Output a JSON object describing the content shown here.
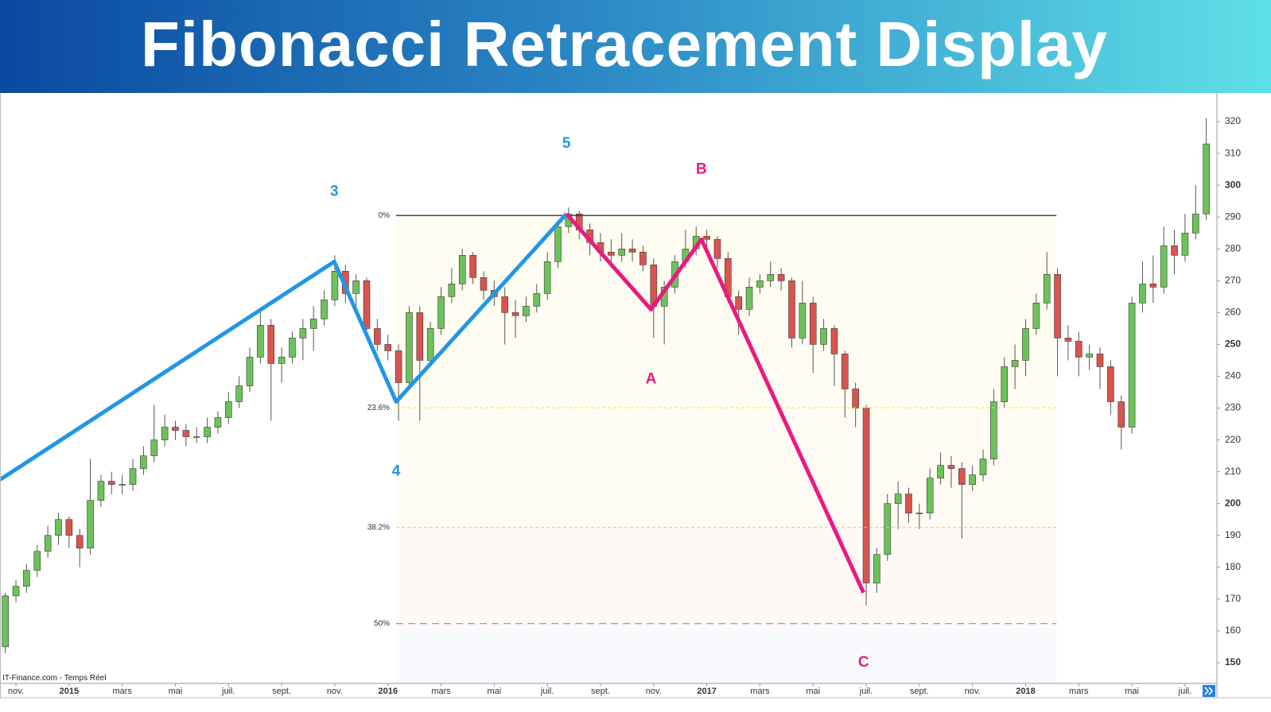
{
  "header": {
    "title": "Fibonacci Retracement Display"
  },
  "chart_data": {
    "type": "candlestick",
    "source": "IT-Finance.com - Temps Réel",
    "up_color": "#6cc25a",
    "down_color": "#d9534f",
    "xlim": [
      -0.6,
      45.2
    ],
    "ylim": [
      143.5,
      329
    ],
    "yticks": [
      150,
      160,
      170,
      180,
      190,
      200,
      210,
      220,
      230,
      240,
      250,
      260,
      270,
      280,
      290,
      300,
      310,
      320
    ],
    "xticks": [
      {
        "value": 0,
        "label": "nov."
      },
      {
        "value": 2,
        "label": "2015"
      },
      {
        "value": 4,
        "label": "mars"
      },
      {
        "value": 6,
        "label": "mai"
      },
      {
        "value": 8,
        "label": "juil."
      },
      {
        "value": 10,
        "label": "sept."
      },
      {
        "value": 12,
        "label": "nov."
      },
      {
        "value": 14,
        "label": "2016"
      },
      {
        "value": 16,
        "label": "mars"
      },
      {
        "value": 18,
        "label": "mai"
      },
      {
        "value": 20,
        "label": "juil."
      },
      {
        "value": 22,
        "label": "sept."
      },
      {
        "value": 24,
        "label": "nov."
      },
      {
        "value": 26,
        "label": "2017"
      },
      {
        "value": 28,
        "label": "mars"
      },
      {
        "value": 30,
        "label": "mai"
      },
      {
        "value": 32,
        "label": "juil."
      },
      {
        "value": 34,
        "label": "sept."
      },
      {
        "value": 36,
        "label": "nov."
      },
      {
        "value": 38,
        "label": "2018"
      },
      {
        "value": 40,
        "label": "mars"
      },
      {
        "value": 42,
        "label": "mai"
      },
      {
        "value": 44,
        "label": "juil."
      }
    ],
    "x": [
      -0.4,
      0,
      0.4,
      0.8,
      1.2,
      1.6,
      2,
      2.4,
      2.8,
      3.2,
      3.6,
      4,
      4.4,
      4.8,
      5.2,
      5.6,
      6,
      6.4,
      6.8,
      7.2,
      7.6,
      8,
      8.4,
      8.8,
      9.2,
      9.6,
      10,
      10.4,
      10.8,
      11.2,
      11.6,
      12,
      12.4,
      12.8,
      13.2,
      13.6,
      14,
      14.4,
      14.8,
      15.2,
      15.6,
      16,
      16.4,
      16.8,
      17.2,
      17.6,
      18,
      18.4,
      18.8,
      19.2,
      19.6,
      20,
      20.4,
      20.8,
      21.2,
      21.6,
      22,
      22.4,
      22.8,
      23.2,
      23.6,
      24,
      24.4,
      24.8,
      25.2,
      25.6,
      26,
      26.4,
      26.8,
      27.2,
      27.6,
      28,
      28.4,
      28.8,
      29.2,
      29.6,
      30,
      30.4,
      30.8,
      31.2,
      31.6,
      32,
      32.4,
      32.8,
      33.2,
      33.6,
      34,
      34.4,
      34.8,
      35.2,
      35.6,
      36,
      36.4,
      36.8,
      37.2,
      37.6,
      38,
      38.4,
      38.8,
      39.2,
      39.6,
      40,
      40.4,
      40.8,
      41.2,
      41.6,
      42,
      42.4,
      42.8,
      43.2,
      43.6,
      44,
      44.4,
      44.8
    ],
    "candles": [
      [
        155,
        172,
        153,
        171
      ],
      [
        171,
        176,
        169,
        174
      ],
      [
        174,
        181,
        172,
        179
      ],
      [
        179,
        187,
        177,
        185
      ],
      [
        185,
        193,
        183,
        190
      ],
      [
        190,
        197,
        187,
        195
      ],
      [
        195,
        196,
        186,
        190
      ],
      [
        190,
        192,
        180,
        186
      ],
      [
        186,
        214,
        184,
        201
      ],
      [
        201,
        209,
        199,
        207
      ],
      [
        207,
        210,
        203,
        206
      ],
      [
        206,
        209,
        203,
        206
      ],
      [
        206,
        214,
        204,
        211
      ],
      [
        211,
        218,
        209,
        215
      ],
      [
        215,
        231,
        213,
        220
      ],
      [
        220,
        228,
        218,
        224
      ],
      [
        224,
        226,
        220,
        223
      ],
      [
        223,
        225,
        218,
        221
      ],
      [
        221,
        224,
        219,
        221
      ],
      [
        221,
        227,
        219,
        224
      ],
      [
        224,
        229,
        222,
        227
      ],
      [
        227,
        235,
        225,
        232
      ],
      [
        232,
        240,
        230,
        237
      ],
      [
        237,
        249,
        235,
        246
      ],
      [
        246,
        260,
        244,
        256
      ],
      [
        256,
        258,
        226,
        244
      ],
      [
        244,
        249,
        238,
        246
      ],
      [
        246,
        254,
        244,
        252
      ],
      [
        252,
        258,
        245,
        255
      ],
      [
        255,
        262,
        248,
        258
      ],
      [
        258,
        267,
        256,
        264
      ],
      [
        264,
        278,
        262,
        273
      ],
      [
        273,
        275,
        263,
        266
      ],
      [
        266,
        272,
        262,
        270
      ],
      [
        270,
        271,
        252,
        255
      ],
      [
        255,
        258,
        248,
        250
      ],
      [
        250,
        253,
        245,
        248
      ],
      [
        248,
        250,
        226,
        238
      ],
      [
        238,
        262,
        236,
        260
      ],
      [
        260,
        262,
        226,
        245
      ],
      [
        245,
        257,
        243,
        255
      ],
      [
        255,
        268,
        253,
        265
      ],
      [
        265,
        274,
        263,
        269
      ],
      [
        269,
        280,
        267,
        278
      ],
      [
        278,
        279,
        269,
        271
      ],
      [
        271,
        273,
        264,
        267
      ],
      [
        267,
        270,
        262,
        265
      ],
      [
        265,
        268,
        250,
        260
      ],
      [
        260,
        264,
        252,
        259
      ],
      [
        259,
        265,
        257,
        262
      ],
      [
        262,
        269,
        260,
        266
      ],
      [
        266,
        279,
        264,
        276
      ],
      [
        276,
        289,
        274,
        287
      ],
      [
        287,
        293,
        285,
        291
      ],
      [
        291,
        292,
        283,
        286
      ],
      [
        286,
        288,
        278,
        282
      ],
      [
        282,
        285,
        276,
        279
      ],
      [
        279,
        283,
        274,
        278
      ],
      [
        278,
        285,
        276,
        280
      ],
      [
        280,
        283,
        276,
        279
      ],
      [
        279,
        281,
        273,
        275
      ],
      [
        275,
        277,
        252,
        262
      ],
      [
        262,
        270,
        250,
        268
      ],
      [
        268,
        278,
        266,
        276
      ],
      [
        276,
        286,
        274,
        280
      ],
      [
        280,
        287,
        278,
        284
      ],
      [
        284,
        286,
        280,
        283
      ],
      [
        283,
        284,
        274,
        277
      ],
      [
        277,
        279,
        263,
        265
      ],
      [
        265,
        267,
        253,
        261
      ],
      [
        261,
        271,
        259,
        268
      ],
      [
        268,
        272,
        266,
        270
      ],
      [
        270,
        276,
        268,
        272
      ],
      [
        272,
        274,
        267,
        270
      ],
      [
        270,
        271,
        249,
        252
      ],
      [
        252,
        270,
        250,
        263
      ],
      [
        263,
        265,
        241,
        250
      ],
      [
        250,
        258,
        248,
        255
      ],
      [
        255,
        256,
        237,
        247
      ],
      [
        247,
        248,
        227,
        236
      ],
      [
        236,
        238,
        224,
        230
      ],
      [
        230,
        231,
        168,
        175
      ],
      [
        175,
        186,
        172,
        184
      ],
      [
        184,
        203,
        182,
        200
      ],
      [
        200,
        207,
        192,
        203
      ],
      [
        203,
        205,
        194,
        197
      ],
      [
        197,
        200,
        192,
        197
      ],
      [
        197,
        211,
        195,
        208
      ],
      [
        208,
        216,
        206,
        212
      ],
      [
        212,
        215,
        205,
        211
      ],
      [
        211,
        213,
        189,
        206
      ],
      [
        206,
        212,
        204,
        209
      ],
      [
        209,
        217,
        207,
        214
      ],
      [
        214,
        236,
        212,
        232
      ],
      [
        232,
        246,
        230,
        243
      ],
      [
        243,
        250,
        236,
        245
      ],
      [
        245,
        258,
        240,
        255
      ],
      [
        255,
        266,
        253,
        263
      ],
      [
        263,
        279,
        261,
        272
      ],
      [
        272,
        274,
        240,
        252
      ],
      [
        252,
        256,
        245,
        251
      ],
      [
        251,
        254,
        240,
        246
      ],
      [
        246,
        250,
        242,
        247
      ],
      [
        247,
        249,
        236,
        243
      ],
      [
        243,
        245,
        228,
        232
      ],
      [
        232,
        234,
        217,
        224
      ],
      [
        224,
        265,
        222,
        263
      ],
      [
        263,
        276,
        260,
        269
      ],
      [
        269,
        278,
        263,
        268
      ],
      [
        268,
        287,
        266,
        281
      ],
      [
        281,
        286,
        272,
        278
      ],
      [
        278,
        291,
        276,
        285
      ],
      [
        285,
        300,
        283,
        291
      ],
      [
        291,
        321,
        289,
        313
      ]
    ],
    "fibonacci": {
      "x": [
        14.31,
        39.16
      ],
      "levels": [
        {
          "value": 290.5,
          "label": "0%",
          "color": "#333333"
        },
        {
          "value": 230.1,
          "label": "23.6%",
          "color": "#e9e15a"
        },
        {
          "value": 192.5,
          "label": "38.2%",
          "color": "#f0c35c"
        },
        {
          "value": 162.3,
          "label": "50%",
          "color": "#ee8a5a"
        }
      ]
    },
    "waves": [
      {
        "color": "#2196e8",
        "x": [
          -0.6,
          11.98,
          14.31,
          20.72
        ],
        "y": [
          207.5,
          276,
          232,
          291
        ],
        "labels": [
          "3",
          "4",
          "5"
        ]
      },
      {
        "color": "#ea1a80",
        "x": [
          20.72,
          23.9,
          25.8,
          31.9
        ],
        "y": [
          291,
          261,
          283,
          172
        ],
        "labels": [
          "A",
          "B",
          "C"
        ]
      }
    ]
  }
}
